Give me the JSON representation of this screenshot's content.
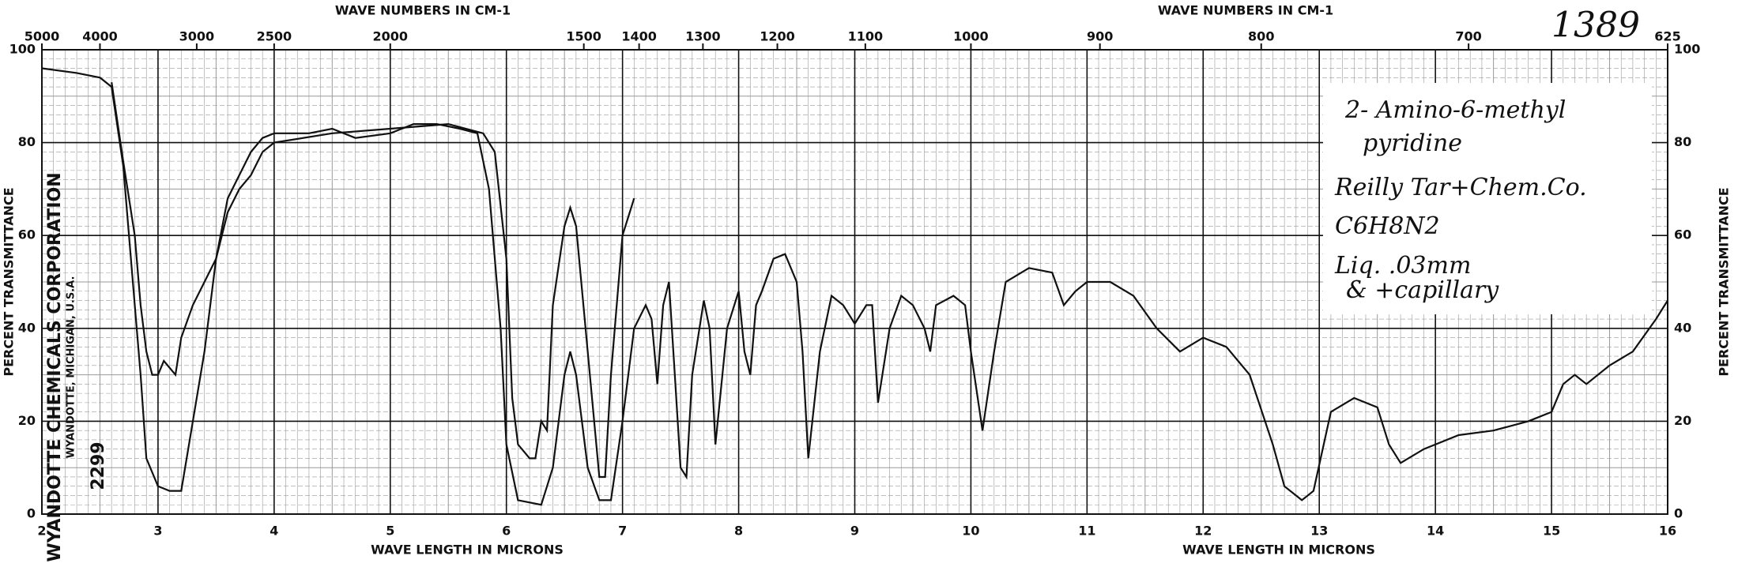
{
  "chart_data": {
    "type": "line",
    "xlabel": "WAVE LENGTH IN MICRONS",
    "x2label": "WAVE NUMBERS IN CM-1",
    "ylabel": "PERCENT TRANSMITTANCE",
    "xlim": [
      2,
      16
    ],
    "xticks": [
      2,
      3,
      4,
      5,
      6,
      7,
      8,
      9,
      10,
      11,
      12,
      13,
      14,
      15,
      16
    ],
    "x2ticks": [
      5000,
      4000,
      3000,
      2500,
      2000,
      1500,
      1400,
      1300,
      1200,
      1100,
      1000,
      900,
      800,
      700,
      625
    ],
    "ylim": [
      0,
      100
    ],
    "yticks": [
      0,
      20,
      40,
      60,
      80,
      100
    ],
    "grid": true,
    "series": [
      {
        "color": "#111111",
        "x": [
          2,
          2.3,
          2.5,
          2.6,
          2.7,
          2.8,
          2.85,
          2.9,
          3.0,
          3.1,
          3.2,
          3.3,
          3.4,
          3.5,
          3.6,
          3.7,
          3.8,
          3.9,
          4.0,
          4.3,
          4.5,
          4.7,
          5.0,
          5.2,
          5.4,
          5.6,
          5.75,
          5.85,
          5.95,
          6.0,
          6.1,
          6.3,
          6.4,
          6.5,
          6.55,
          6.6,
          6.7,
          6.8,
          6.9,
          7.0,
          7.1,
          7.2,
          7.25,
          7.3,
          7.35,
          7.4,
          7.45,
          7.5,
          7.55,
          7.6,
          7.7,
          7.75,
          7.8,
          7.9,
          8.0,
          8.05,
          8.1,
          8.15,
          8.2,
          8.3,
          8.4,
          8.5,
          8.55,
          8.6,
          8.7,
          8.8,
          8.9,
          9.0,
          9.1,
          9.15,
          9.2,
          9.3,
          9.4,
          9.5,
          9.6,
          9.65,
          9.7,
          9.85,
          9.95,
          10.0,
          10.1,
          10.2,
          10.3,
          10.5,
          10.7,
          10.8,
          10.9,
          11.0,
          11.2,
          11.4,
          11.6,
          11.8,
          12.0,
          12.2,
          12.4,
          12.6,
          12.7,
          12.85,
          12.95,
          13.1,
          13.3,
          13.5,
          13.6,
          13.7,
          13.9,
          14.2,
          14.5,
          14.8,
          15.0,
          15.1,
          15.2,
          15.3,
          15.5,
          15.7,
          15.9,
          16.0
        ],
        "values": [
          96,
          95,
          94,
          92,
          75,
          45,
          30,
          12,
          6,
          5,
          5,
          20,
          35,
          55,
          68,
          73,
          78,
          81,
          82,
          82,
          83,
          81,
          82,
          84,
          84,
          83,
          82,
          70,
          40,
          15,
          3,
          2,
          10,
          30,
          35,
          30,
          10,
          3,
          3,
          20,
          40,
          45,
          42,
          28,
          45,
          50,
          30,
          10,
          8,
          30,
          46,
          40,
          15,
          40,
          48,
          35,
          30,
          45,
          48,
          55,
          56,
          50,
          35,
          12,
          35,
          47,
          45,
          41,
          45,
          45,
          24,
          40,
          47,
          45,
          40,
          35,
          45,
          47,
          45,
          35,
          18,
          35,
          50,
          53,
          52,
          45,
          48,
          50,
          50,
          47,
          40,
          35,
          38,
          36,
          30,
          15,
          6,
          3,
          5,
          22,
          25,
          23,
          15,
          11,
          14,
          17,
          18,
          20,
          22,
          28,
          30,
          28,
          32,
          35,
          42,
          46
        ]
      },
      {
        "color": "#111111",
        "x": [
          2.6,
          2.7,
          2.8,
          2.85,
          2.9,
          2.95,
          3.0,
          3.05,
          3.15,
          3.2,
          3.3,
          3.4,
          3.5,
          3.6,
          3.7,
          3.8,
          3.9,
          4.0,
          4.5,
          5.0,
          5.5,
          5.8,
          5.9,
          6.0,
          6.05,
          6.1,
          6.2,
          6.25,
          6.3,
          6.35,
          6.4,
          6.5,
          6.55,
          6.6,
          6.7,
          6.8,
          6.85,
          6.9,
          7.0,
          7.1
        ],
        "values": [
          93,
          76,
          60,
          45,
          35,
          30,
          30,
          33,
          30,
          38,
          45,
          50,
          55,
          65,
          70,
          73,
          78,
          80,
          82,
          83,
          84,
          82,
          78,
          55,
          25,
          15,
          12,
          12,
          20,
          18,
          45,
          62,
          66,
          62,
          35,
          8,
          8,
          30,
          60,
          68
        ]
      }
    ],
    "annotations": [
      "1389",
      "2- Amino-6-methyl",
      "pyridine",
      "Reilly Tar+Chem.Co.",
      "C6H8N2",
      "Liq. .03mm",
      "& +capillary",
      "WYANDOTTE CHEMICALS CORPORATION",
      "WYANDOTTE, MICHIGAN, U.S.A.",
      "2299"
    ]
  }
}
